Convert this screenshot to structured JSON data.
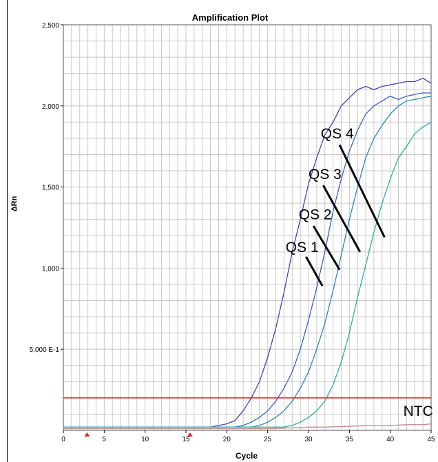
{
  "chart_data": {
    "type": "line",
    "title": "Amplification Plot",
    "xlabel": "Cycle",
    "ylabel": "ΔRn",
    "xlim": [
      0,
      45
    ],
    "ylim": [
      0,
      2.5
    ],
    "x_ticks": [
      0,
      5,
      10,
      15,
      20,
      25,
      30,
      35,
      40,
      45
    ],
    "x_tick_labels": [
      "0",
      "5",
      "10",
      "15",
      "20",
      "25",
      "30",
      "35",
      "40",
      "45"
    ],
    "y_ticks": [
      0.5,
      1.0,
      1.5,
      2.0,
      2.5
    ],
    "y_tick_labels": [
      "5,000 E-1",
      "1,000",
      "1,500",
      "2,000",
      "2,500"
    ],
    "grid": true,
    "threshold": 0.2,
    "threshold_color": "#ee1c1c",
    "series": [
      {
        "name": "QS 4",
        "color": "#4a3fb8",
        "x": [
          0,
          17,
          18,
          19,
          20,
          21,
          22,
          23,
          24,
          25,
          26,
          27,
          28,
          29,
          30,
          31,
          32,
          33,
          34,
          35,
          36,
          37,
          38,
          39,
          40,
          41,
          42,
          43,
          44,
          45
        ],
        "y": [
          0.02,
          0.02,
          0.02,
          0.03,
          0.04,
          0.06,
          0.12,
          0.2,
          0.3,
          0.45,
          0.63,
          0.85,
          1.1,
          1.3,
          1.52,
          1.68,
          1.82,
          1.9,
          2.0,
          2.05,
          2.1,
          2.12,
          2.1,
          2.12,
          2.13,
          2.14,
          2.15,
          2.15,
          2.17,
          2.14
        ]
      },
      {
        "name": "QS 3",
        "color": "#3a5fc8",
        "x": [
          0,
          21,
          22,
          23,
          24,
          25,
          26,
          27,
          28,
          29,
          30,
          31,
          32,
          33,
          34,
          35,
          36,
          37,
          38,
          39,
          40,
          41,
          42,
          43,
          44,
          45
        ],
        "y": [
          0.02,
          0.02,
          0.03,
          0.05,
          0.08,
          0.12,
          0.18,
          0.26,
          0.36,
          0.5,
          0.68,
          0.88,
          1.1,
          1.35,
          1.55,
          1.72,
          1.85,
          1.95,
          2.0,
          2.03,
          2.06,
          2.04,
          2.06,
          2.07,
          2.08,
          2.08
        ]
      },
      {
        "name": "QS 2",
        "color": "#2a86b8",
        "x": [
          0,
          23,
          24,
          25,
          26,
          27,
          28,
          29,
          30,
          31,
          32,
          33,
          34,
          35,
          36,
          37,
          38,
          39,
          40,
          41,
          42,
          43,
          44,
          45
        ],
        "y": [
          0.02,
          0.02,
          0.03,
          0.05,
          0.08,
          0.12,
          0.18,
          0.26,
          0.36,
          0.5,
          0.66,
          0.86,
          1.08,
          1.3,
          1.5,
          1.68,
          1.8,
          1.88,
          1.95,
          2.0,
          2.03,
          2.04,
          2.05,
          2.06
        ]
      },
      {
        "name": "QS 1",
        "color": "#2aaea0",
        "x": [
          0,
          27,
          28,
          29,
          30,
          31,
          32,
          33,
          34,
          35,
          36,
          37,
          38,
          39,
          40,
          41,
          42,
          43,
          44,
          45
        ],
        "y": [
          0.02,
          0.02,
          0.03,
          0.05,
          0.08,
          0.12,
          0.18,
          0.28,
          0.42,
          0.6,
          0.82,
          1.02,
          1.22,
          1.4,
          1.55,
          1.68,
          1.75,
          1.83,
          1.87,
          1.9
        ]
      },
      {
        "name": "NTC",
        "color": "#c08a8a",
        "x": [
          0,
          25,
          28,
          30,
          32,
          35,
          38,
          40,
          42,
          44,
          45
        ],
        "y": [
          0.01,
          0.01,
          0.015,
          0.02,
          0.02,
          0.025,
          0.03,
          0.03,
          0.035,
          0.035,
          0.04
        ]
      }
    ],
    "annotations": [
      {
        "text": "QS 4",
        "series": "QS 4",
        "label_at": [
          31.5,
          1.8
        ],
        "line": [
          [
            33.8,
            1.76
          ],
          [
            39.3,
            1.19
          ]
        ]
      },
      {
        "text": "QS 3",
        "series": "QS 3",
        "label_at": [
          30.0,
          1.55
        ],
        "line": [
          [
            31.8,
            1.51
          ],
          [
            36.3,
            1.1
          ]
        ]
      },
      {
        "text": "QS 2",
        "series": "QS 2",
        "label_at": [
          28.8,
          1.3
        ],
        "line": [
          [
            30.6,
            1.26
          ],
          [
            33.8,
            0.99
          ]
        ]
      },
      {
        "text": "QS 1",
        "series": "QS 1",
        "label_at": [
          27.2,
          1.1
        ],
        "line": [
          [
            29.7,
            1.07
          ],
          [
            31.7,
            0.89
          ]
        ]
      },
      {
        "text": "NTC",
        "series": "NTC",
        "label_at": [
          41.6,
          0.09
        ],
        "line": []
      }
    ],
    "baseline_markers": [
      2.9,
      15.5
    ]
  }
}
